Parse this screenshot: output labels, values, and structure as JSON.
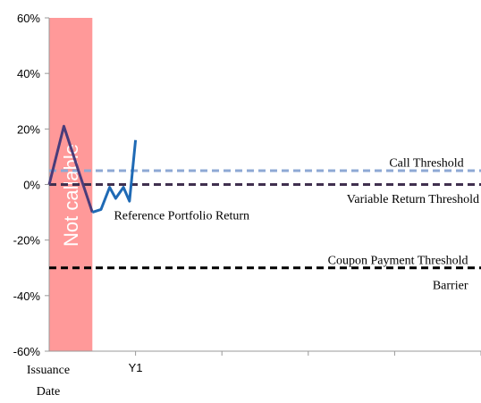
{
  "chart_data": {
    "type": "line",
    "ylim": [
      -60,
      60
    ],
    "yticks": [
      60,
      40,
      20,
      0,
      -20,
      -40,
      -60
    ],
    "ytick_labels": [
      "60%",
      "40%",
      "20%",
      "0%",
      "-20%",
      "-40%",
      "-60%"
    ],
    "xlim": [
      0,
      5
    ],
    "x_tick_positions": [
      1,
      2,
      3,
      4,
      5
    ],
    "x_labels": [
      {
        "x": 0,
        "text": "Issuance",
        "line": 1
      },
      {
        "x": 0,
        "text": "Date",
        "line": 2
      },
      {
        "x": 1,
        "text": "Y1",
        "line": 1
      }
    ],
    "grid": false,
    "not_callable_band": {
      "x_start": 0,
      "x_end": 0.5,
      "label": "Not callable",
      "color": "#ff9999"
    },
    "thresholds": [
      {
        "name": "Call Threshold",
        "y": 5,
        "color": "#8ea9d4",
        "dashed": true
      },
      {
        "name": "Variable Return Threshold",
        "y": 0,
        "color": "#40304f",
        "dashed": true
      },
      {
        "name": "Coupon Payment Threshold",
        "y": -30,
        "color": "#000000",
        "dashed": true
      }
    ],
    "annotations": [
      {
        "text": "Call Threshold",
        "x": 4.8,
        "y": 8,
        "anchor": "end"
      },
      {
        "text": "Variable Return Threshold",
        "x": 4.98,
        "y": -5,
        "anchor": "end"
      },
      {
        "text": "Reference Portfolio Return",
        "x": 0.75,
        "y": -11,
        "anchor": "start"
      },
      {
        "text": "Coupon Payment Threshold",
        "x": 4.85,
        "y": -27,
        "anchor": "end"
      },
      {
        "text": "Barrier",
        "x": 4.85,
        "y": -36,
        "anchor": "end"
      }
    ],
    "series": [
      {
        "name": "Reference Portfolio Return",
        "color_inside_band": "#4a3c7a",
        "color": "#1f6ab5",
        "x": [
          0,
          0.17,
          0.36,
          0.5,
          0.6,
          0.7,
          0.77,
          0.86,
          0.93,
          1.0
        ],
        "y": [
          0,
          21,
          3,
          -10,
          -9,
          -1,
          -5,
          -1,
          -6,
          16
        ]
      }
    ]
  }
}
